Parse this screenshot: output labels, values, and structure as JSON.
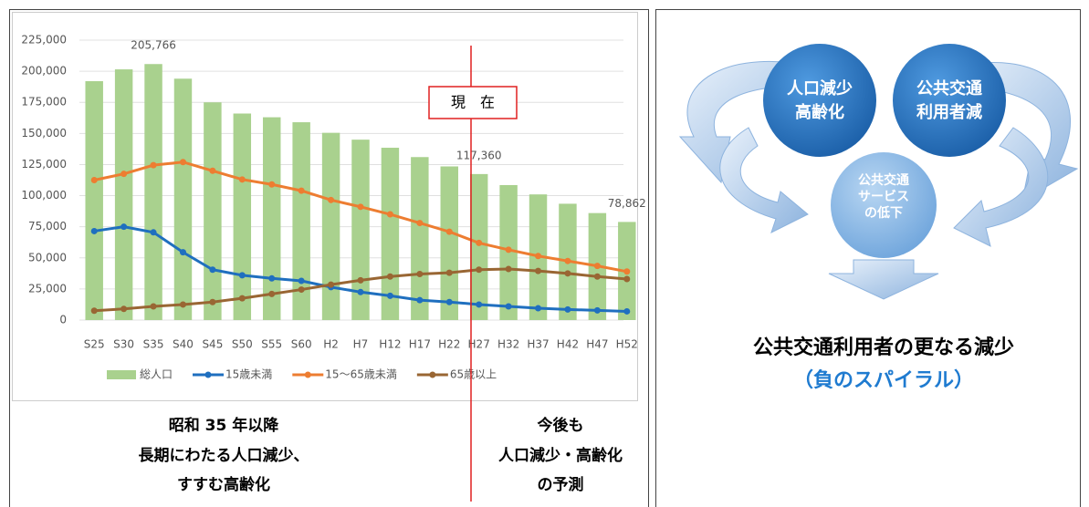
{
  "chart_data": {
    "type": "bar",
    "categories": [
      "S25",
      "S30",
      "S35",
      "S40",
      "S45",
      "S50",
      "S55",
      "S60",
      "H2",
      "H7",
      "H12",
      "H17",
      "H22",
      "H27",
      "H32",
      "H37",
      "H42",
      "H47",
      "H52"
    ],
    "series": [
      {
        "name": "総人口",
        "type": "bar",
        "color": "#a9d18e",
        "values": [
          192000,
          201500,
          205766,
          194000,
          175000,
          166000,
          163000,
          159000,
          150500,
          145000,
          138500,
          131000,
          123500,
          117360,
          108500,
          101000,
          93500,
          86000,
          78862
        ],
        "value_labels": [
          null,
          null,
          "205,766",
          null,
          null,
          null,
          null,
          null,
          null,
          null,
          null,
          null,
          null,
          "117,360",
          null,
          null,
          null,
          null,
          "78,862"
        ]
      },
      {
        "name": "15歳未満",
        "type": "line",
        "color": "#1f6fbf",
        "values": [
          71500,
          75000,
          70500,
          54500,
          40500,
          36000,
          33500,
          31500,
          26500,
          22500,
          19500,
          16000,
          14500,
          12500,
          11000,
          9500,
          8500,
          7800,
          7000
        ]
      },
      {
        "name": "15〜65歳未満",
        "type": "line",
        "color": "#ed7d31",
        "values": [
          112500,
          117500,
          124500,
          127000,
          120000,
          113000,
          109000,
          104000,
          96500,
          91000,
          85000,
          78000,
          71000,
          62000,
          56500,
          51500,
          47500,
          43500,
          39000
        ]
      },
      {
        "name": "65歳以上",
        "type": "line",
        "color": "#996633",
        "values": [
          7500,
          9000,
          11000,
          12500,
          14500,
          17500,
          21000,
          24500,
          28500,
          32000,
          35000,
          37000,
          38000,
          40500,
          41000,
          39500,
          37500,
          35000,
          33000
        ]
      }
    ],
    "ylim": [
      0,
      225000
    ],
    "yticks": [
      0,
      {
        "value": 25000,
        "label": "25,000"
      },
      {
        "value": 50000,
        "label": "50,000"
      },
      {
        "value": 75000,
        "label": "75,000"
      },
      {
        "value": 100000,
        "label": "100,000"
      },
      {
        "value": 125000,
        "label": "125,000"
      },
      {
        "value": 150000,
        "label": "150,000"
      },
      {
        "value": 175000,
        "label": "175,000"
      },
      {
        "value": 200000,
        "label": "200,000"
      },
      {
        "value": 225000,
        "label": "225,000"
      }
    ],
    "grid": true,
    "annotation": "現　在",
    "legend": "bottom"
  },
  "notes": {
    "past": [
      "昭和 35 年以降",
      "長期にわたる人口減少、",
      "すすむ高齢化"
    ],
    "future": [
      "今後も",
      "人口減少・高齢化",
      "の予測"
    ]
  },
  "diagram": {
    "circles": [
      [
        "人口減少",
        "高齢化"
      ],
      [
        "公共交通",
        "利用者減"
      ],
      [
        "公共交通",
        "サービス",
        "の低下"
      ]
    ],
    "conclusion": "公共交通利用者の更なる減少",
    "subtitle": "（負のスパイラル）"
  }
}
